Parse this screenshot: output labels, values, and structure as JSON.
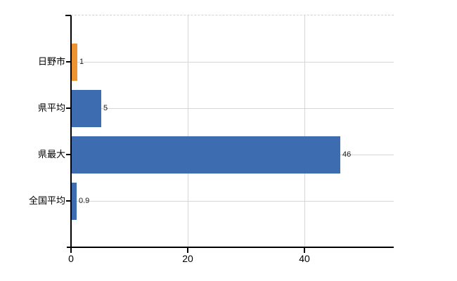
{
  "chart_data": {
    "type": "bar",
    "orientation": "horizontal",
    "title": "",
    "xlabel": "",
    "ylabel": "",
    "categories": [
      "日野市",
      "県平均",
      "県最大",
      "全国平均"
    ],
    "values": [
      1,
      5,
      46,
      0.9
    ],
    "value_labels": [
      "1",
      "5",
      "46",
      "0.9"
    ],
    "bar_colors": [
      "#ED9333",
      "#3D6DB0",
      "#3D6DB0",
      "#3D6DB0"
    ],
    "x_ticks": [
      0,
      20,
      40
    ],
    "x_tick_labels": [
      "0",
      "20",
      "40"
    ],
    "xlim": [
      0,
      55.3
    ],
    "grid": true,
    "legend": null,
    "colors": {
      "highlight_bar": "#ED9333",
      "default_bar": "#3D6DB0",
      "grid_line": "#D5D8D2",
      "axis": "#000000",
      "background": "#FFFFFF",
      "label_text": "#000000",
      "value_text": "#1A1A1A"
    }
  }
}
